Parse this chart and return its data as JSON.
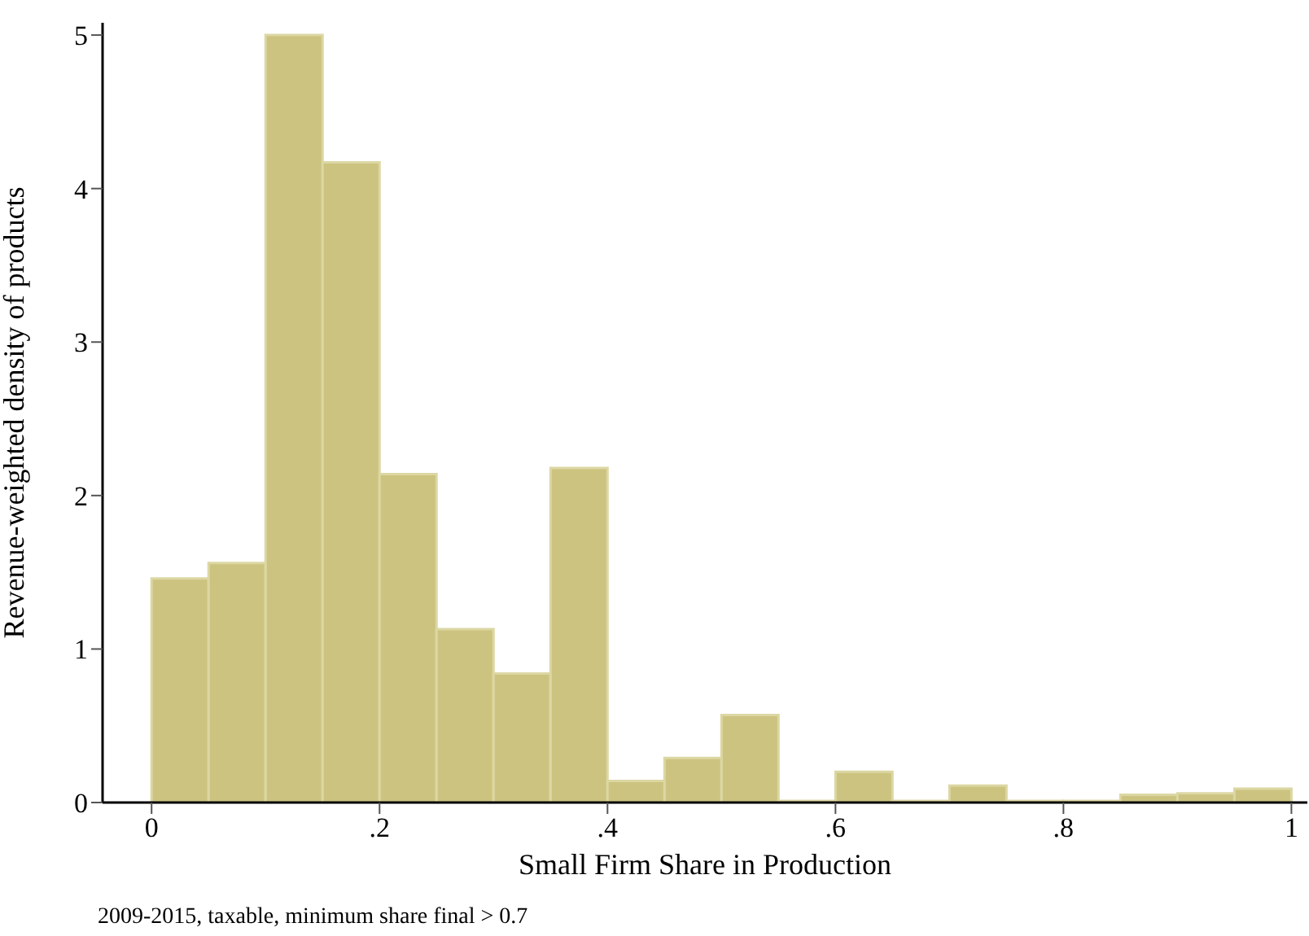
{
  "chart_data": {
    "type": "histogram",
    "xlabel": "Small Firm Share in Production",
    "ylabel": "Revenue-weighted density of products",
    "annotations": [
      "2009-2015, taxable, minimum share final > 0.7"
    ],
    "bins": [
      0,
      0.05,
      0.1,
      0.15,
      0.2,
      0.25,
      0.3,
      0.35,
      0.4,
      0.45,
      0.5,
      0.55,
      0.6,
      0.65,
      0.7,
      0.75,
      0.8,
      0.85,
      0.9,
      0.95,
      1
    ],
    "values": [
      1.46,
      1.56,
      5.0,
      4.17,
      2.14,
      1.13,
      0.84,
      2.18,
      0.14,
      0.29,
      0.57,
      0.01,
      0.2,
      0.01,
      0.11,
      0.01,
      0.01,
      0.05,
      0.06,
      0.09
    ],
    "color": "#cbc37f",
    "xlim": [
      -0.043,
      1.014
    ],
    "xticks": [
      {
        "value": 0,
        "label": "0"
      },
      {
        "value": 0.2,
        "label": ".2"
      },
      {
        "value": 0.4,
        "label": ".4"
      },
      {
        "value": 0.6,
        "label": ".6"
      },
      {
        "value": 0.8,
        "label": ".8"
      },
      {
        "value": 1,
        "label": "1"
      }
    ],
    "ylim": [
      0,
      5.08
    ],
    "yticks": [
      0,
      1,
      2,
      3,
      4,
      5
    ],
    "grid": false
  }
}
